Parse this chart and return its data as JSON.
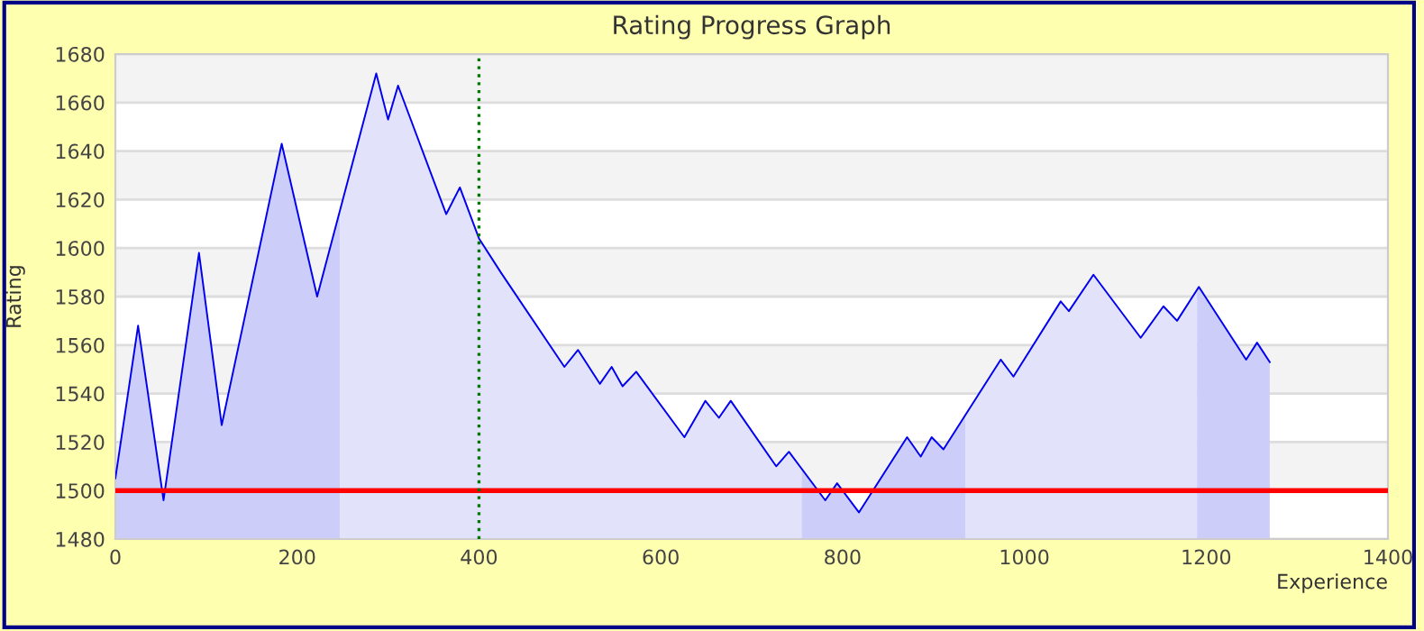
{
  "chart_data": {
    "type": "area",
    "title": "Rating Progress Graph",
    "xlabel": "Experience",
    "ylabel": "Rating",
    "series": [
      {
        "color": "#cdcdfa",
        "x": [
          0,
          25,
          53,
          92,
          117,
          183,
          222,
          247
        ],
        "values": [
          1505,
          1568,
          1496,
          1598,
          1527,
          1643,
          1580,
          1615
        ]
      },
      {
        "color": "#e2e2fb",
        "x": [
          247,
          287,
          300,
          311,
          364,
          379,
          400,
          424,
          494,
          509,
          533,
          546,
          558,
          573,
          626,
          649,
          664,
          677,
          727,
          741,
          755
        ],
        "values": [
          1615,
          1672,
          1653,
          1667,
          1614,
          1625,
          1604,
          1590,
          1551,
          1558,
          1544,
          1551,
          1543,
          1549,
          1522,
          1537,
          1530,
          1537,
          1510,
          1516,
          1509
        ]
      },
      {
        "color": "#cdcdfa",
        "x": [
          755,
          781,
          794,
          818,
          871,
          886,
          898,
          911,
          935
        ],
        "values": [
          1509,
          1496,
          1503,
          1491,
          1522,
          1514,
          1522,
          1517,
          1531
        ]
      },
      {
        "color": "#e2e2fb",
        "x": [
          935,
          974,
          988,
          1040,
          1049,
          1076,
          1128,
          1153,
          1168,
          1190
        ],
        "values": [
          1531,
          1554,
          1547,
          1578,
          1574,
          1589,
          1563,
          1576,
          1570,
          1583
        ]
      },
      {
        "color": "#cdcdfa",
        "x": [
          1190,
          1192,
          1244,
          1256,
          1270
        ],
        "values": [
          1583,
          1584,
          1554,
          1561,
          1553
        ]
      },
      {
        "type": "line",
        "color": "#0000ee",
        "x": [
          0,
          25,
          53,
          92,
          117,
          183,
          222,
          287,
          300,
          311,
          364,
          379,
          400,
          424,
          494,
          509,
          533,
          546,
          558,
          573,
          626,
          649,
          664,
          677,
          727,
          741,
          781,
          794,
          818,
          871,
          886,
          898,
          911,
          974,
          988,
          1040,
          1049,
          1076,
          1128,
          1153,
          1168,
          1192,
          1244,
          1256,
          1270
        ],
        "values": [
          1505,
          1568,
          1496,
          1598,
          1527,
          1643,
          1580,
          1672,
          1653,
          1667,
          1614,
          1625,
          1604,
          1590,
          1551,
          1558,
          1544,
          1551,
          1543,
          1549,
          1522,
          1537,
          1530,
          1537,
          1510,
          1516,
          1496,
          1503,
          1491,
          1522,
          1514,
          1522,
          1517,
          1554,
          1547,
          1578,
          1574,
          1589,
          1563,
          1576,
          1570,
          1584,
          1554,
          1561,
          1553
        ]
      }
    ],
    "xlim": [
      0,
      1400
    ],
    "ylim": [
      1480,
      1680
    ],
    "xticks": [
      0,
      200,
      400,
      600,
      800,
      1000,
      1200,
      1400
    ],
    "yticks": [
      1480,
      1500,
      1520,
      1540,
      1560,
      1580,
      1600,
      1620,
      1640,
      1660,
      1680
    ],
    "grid": "y",
    "legend": false,
    "marker": "none",
    "line_style": "solid",
    "ref_lines": [
      {
        "axis": "y",
        "value": 1500,
        "color": "#ff0000",
        "line_style": "solid"
      },
      {
        "axis": "x",
        "value": 400,
        "color": "#007700",
        "line_style": "dotted"
      }
    ]
  }
}
